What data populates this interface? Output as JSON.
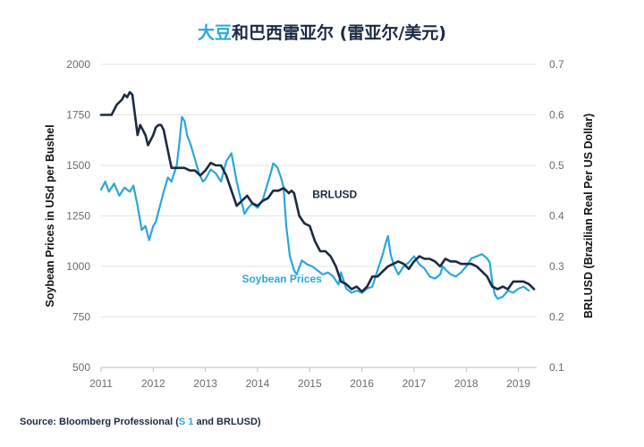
{
  "title": {
    "accent": "大豆",
    "rest": "和巴西雷亚尔 (雷亚尔/美元)"
  },
  "source": {
    "prefix": "Source: Bloomberg Professional (",
    "highlight": "S 1",
    "suffix": " and BRLUSD)"
  },
  "colors": {
    "soybean": "#2aa7dc",
    "brlusd": "#1b2a44"
  },
  "chart_data": {
    "type": "line",
    "ylabel": "Soybean Prices in USd per Bushel",
    "y2label": "BRLUSD (Brazilian Real Per US Dollar)",
    "ylim": [
      500,
      2000
    ],
    "y2lim": [
      0.1,
      0.7
    ],
    "xlim": [
      2011,
      2019.35
    ],
    "xticks": [
      "2011",
      "2012",
      "2013",
      "2014",
      "2015",
      "2016",
      "2017",
      "2018",
      "2019"
    ],
    "yticks": [
      "2000",
      "1750",
      "1500",
      "1250",
      "1000",
      "750",
      "500"
    ],
    "y2ticks": [
      "0.7",
      "0.6",
      "0.5",
      "0.4",
      "0.3",
      "0.2",
      "0.1"
    ],
    "grid": true,
    "annotations": [
      {
        "text": "BRLUSD",
        "series": "BRLUSD"
      },
      {
        "text": "Soybean Prices",
        "series": "Soybean Prices"
      }
    ],
    "series": [
      {
        "name": "Soybean Prices",
        "axis": "left",
        "x": [
          2011.0,
          2011.08,
          2011.15,
          2011.25,
          2011.35,
          2011.45,
          2011.55,
          2011.62,
          2011.7,
          2011.78,
          2011.85,
          2011.92,
          2012.0,
          2012.05,
          2012.12,
          2012.2,
          2012.28,
          2012.35,
          2012.45,
          2012.5,
          2012.55,
          2012.6,
          2012.65,
          2012.72,
          2012.8,
          2012.88,
          2012.95,
          2013.0,
          2013.1,
          2013.2,
          2013.3,
          2013.4,
          2013.5,
          2013.6,
          2013.68,
          2013.75,
          2013.82,
          2013.9,
          2014.0,
          2014.1,
          2014.18,
          2014.25,
          2014.3,
          2014.38,
          2014.45,
          2014.5,
          2014.55,
          2014.62,
          2014.7,
          2014.75,
          2014.85,
          2014.95,
          2015.05,
          2015.15,
          2015.25,
          2015.35,
          2015.45,
          2015.55,
          2015.6,
          2015.7,
          2015.8,
          2015.9,
          2016.0,
          2016.1,
          2016.2,
          2016.3,
          2016.4,
          2016.45,
          2016.5,
          2016.55,
          2016.62,
          2016.7,
          2016.8,
          2016.9,
          2017.0,
          2017.1,
          2017.2,
          2017.3,
          2017.4,
          2017.5,
          2017.55,
          2017.62,
          2017.7,
          2017.8,
          2017.9,
          2018.0,
          2018.1,
          2018.2,
          2018.3,
          2018.4,
          2018.45,
          2018.5,
          2018.55,
          2018.6,
          2018.7,
          2018.8,
          2018.9,
          2019.0,
          2019.1,
          2019.2
        ],
        "values": [
          1380,
          1420,
          1370,
          1410,
          1350,
          1390,
          1370,
          1400,
          1300,
          1180,
          1200,
          1130,
          1200,
          1220,
          1290,
          1370,
          1440,
          1420,
          1500,
          1610,
          1740,
          1720,
          1650,
          1600,
          1530,
          1460,
          1420,
          1430,
          1480,
          1460,
          1420,
          1520,
          1560,
          1420,
          1330,
          1260,
          1290,
          1310,
          1290,
          1330,
          1400,
          1460,
          1510,
          1490,
          1440,
          1390,
          1200,
          1050,
          980,
          960,
          1030,
          1010,
          1000,
          980,
          960,
          970,
          950,
          910,
          970,
          890,
          870,
          880,
          870,
          890,
          900,
          980,
          1060,
          1110,
          1150,
          1060,
          1000,
          960,
          1000,
          1020,
          1050,
          1010,
          990,
          950,
          940,
          960,
          1000,
          980,
          960,
          950,
          970,
          1000,
          1040,
          1050,
          1060,
          1040,
          1020,
          920,
          860,
          840,
          850,
          880,
          870,
          890,
          900,
          880
        ]
      },
      {
        "name": "BRLUSD",
        "axis": "right",
        "x": [
          2011.0,
          2011.1,
          2011.2,
          2011.3,
          2011.4,
          2011.45,
          2011.5,
          2011.55,
          2011.6,
          2011.65,
          2011.7,
          2011.75,
          2011.8,
          2011.85,
          2011.9,
          2012.0,
          2012.05,
          2012.1,
          2012.15,
          2012.2,
          2012.25,
          2012.3,
          2012.35,
          2012.4,
          2012.5,
          2012.6,
          2012.7,
          2012.8,
          2012.9,
          2013.0,
          2013.1,
          2013.2,
          2013.3,
          2013.4,
          2013.5,
          2013.6,
          2013.7,
          2013.8,
          2013.9,
          2014.0,
          2014.1,
          2014.2,
          2014.3,
          2014.4,
          2014.5,
          2014.6,
          2014.65,
          2014.7,
          2014.8,
          2014.9,
          2015.0,
          2015.1,
          2015.2,
          2015.3,
          2015.4,
          2015.5,
          2015.6,
          2015.7,
          2015.8,
          2015.9,
          2016.0,
          2016.1,
          2016.2,
          2016.3,
          2016.4,
          2016.5,
          2016.6,
          2016.7,
          2016.8,
          2016.9,
          2017.0,
          2017.1,
          2017.2,
          2017.3,
          2017.4,
          2017.5,
          2017.6,
          2017.7,
          2017.8,
          2017.9,
          2018.0,
          2018.1,
          2018.2,
          2018.3,
          2018.4,
          2018.5,
          2018.6,
          2018.7,
          2018.8,
          2018.9,
          2019.0,
          2019.1,
          2019.2,
          2019.3
        ],
        "values": [
          0.6,
          0.6,
          0.6,
          0.62,
          0.63,
          0.64,
          0.635,
          0.645,
          0.64,
          0.6,
          0.56,
          0.58,
          0.57,
          0.56,
          0.54,
          0.56,
          0.575,
          0.58,
          0.58,
          0.57,
          0.545,
          0.52,
          0.495,
          0.495,
          0.495,
          0.495,
          0.49,
          0.49,
          0.48,
          0.49,
          0.505,
          0.5,
          0.5,
          0.48,
          0.45,
          0.42,
          0.43,
          0.44,
          0.425,
          0.42,
          0.43,
          0.435,
          0.45,
          0.45,
          0.455,
          0.445,
          0.45,
          0.445,
          0.4,
          0.385,
          0.38,
          0.35,
          0.33,
          0.33,
          0.32,
          0.3,
          0.27,
          0.265,
          0.255,
          0.26,
          0.25,
          0.26,
          0.28,
          0.28,
          0.29,
          0.3,
          0.305,
          0.31,
          0.305,
          0.295,
          0.31,
          0.32,
          0.315,
          0.315,
          0.31,
          0.3,
          0.315,
          0.31,
          0.31,
          0.305,
          0.305,
          0.305,
          0.3,
          0.29,
          0.28,
          0.26,
          0.255,
          0.26,
          0.255,
          0.27,
          0.27,
          0.27,
          0.265,
          0.255
        ]
      }
    ]
  }
}
